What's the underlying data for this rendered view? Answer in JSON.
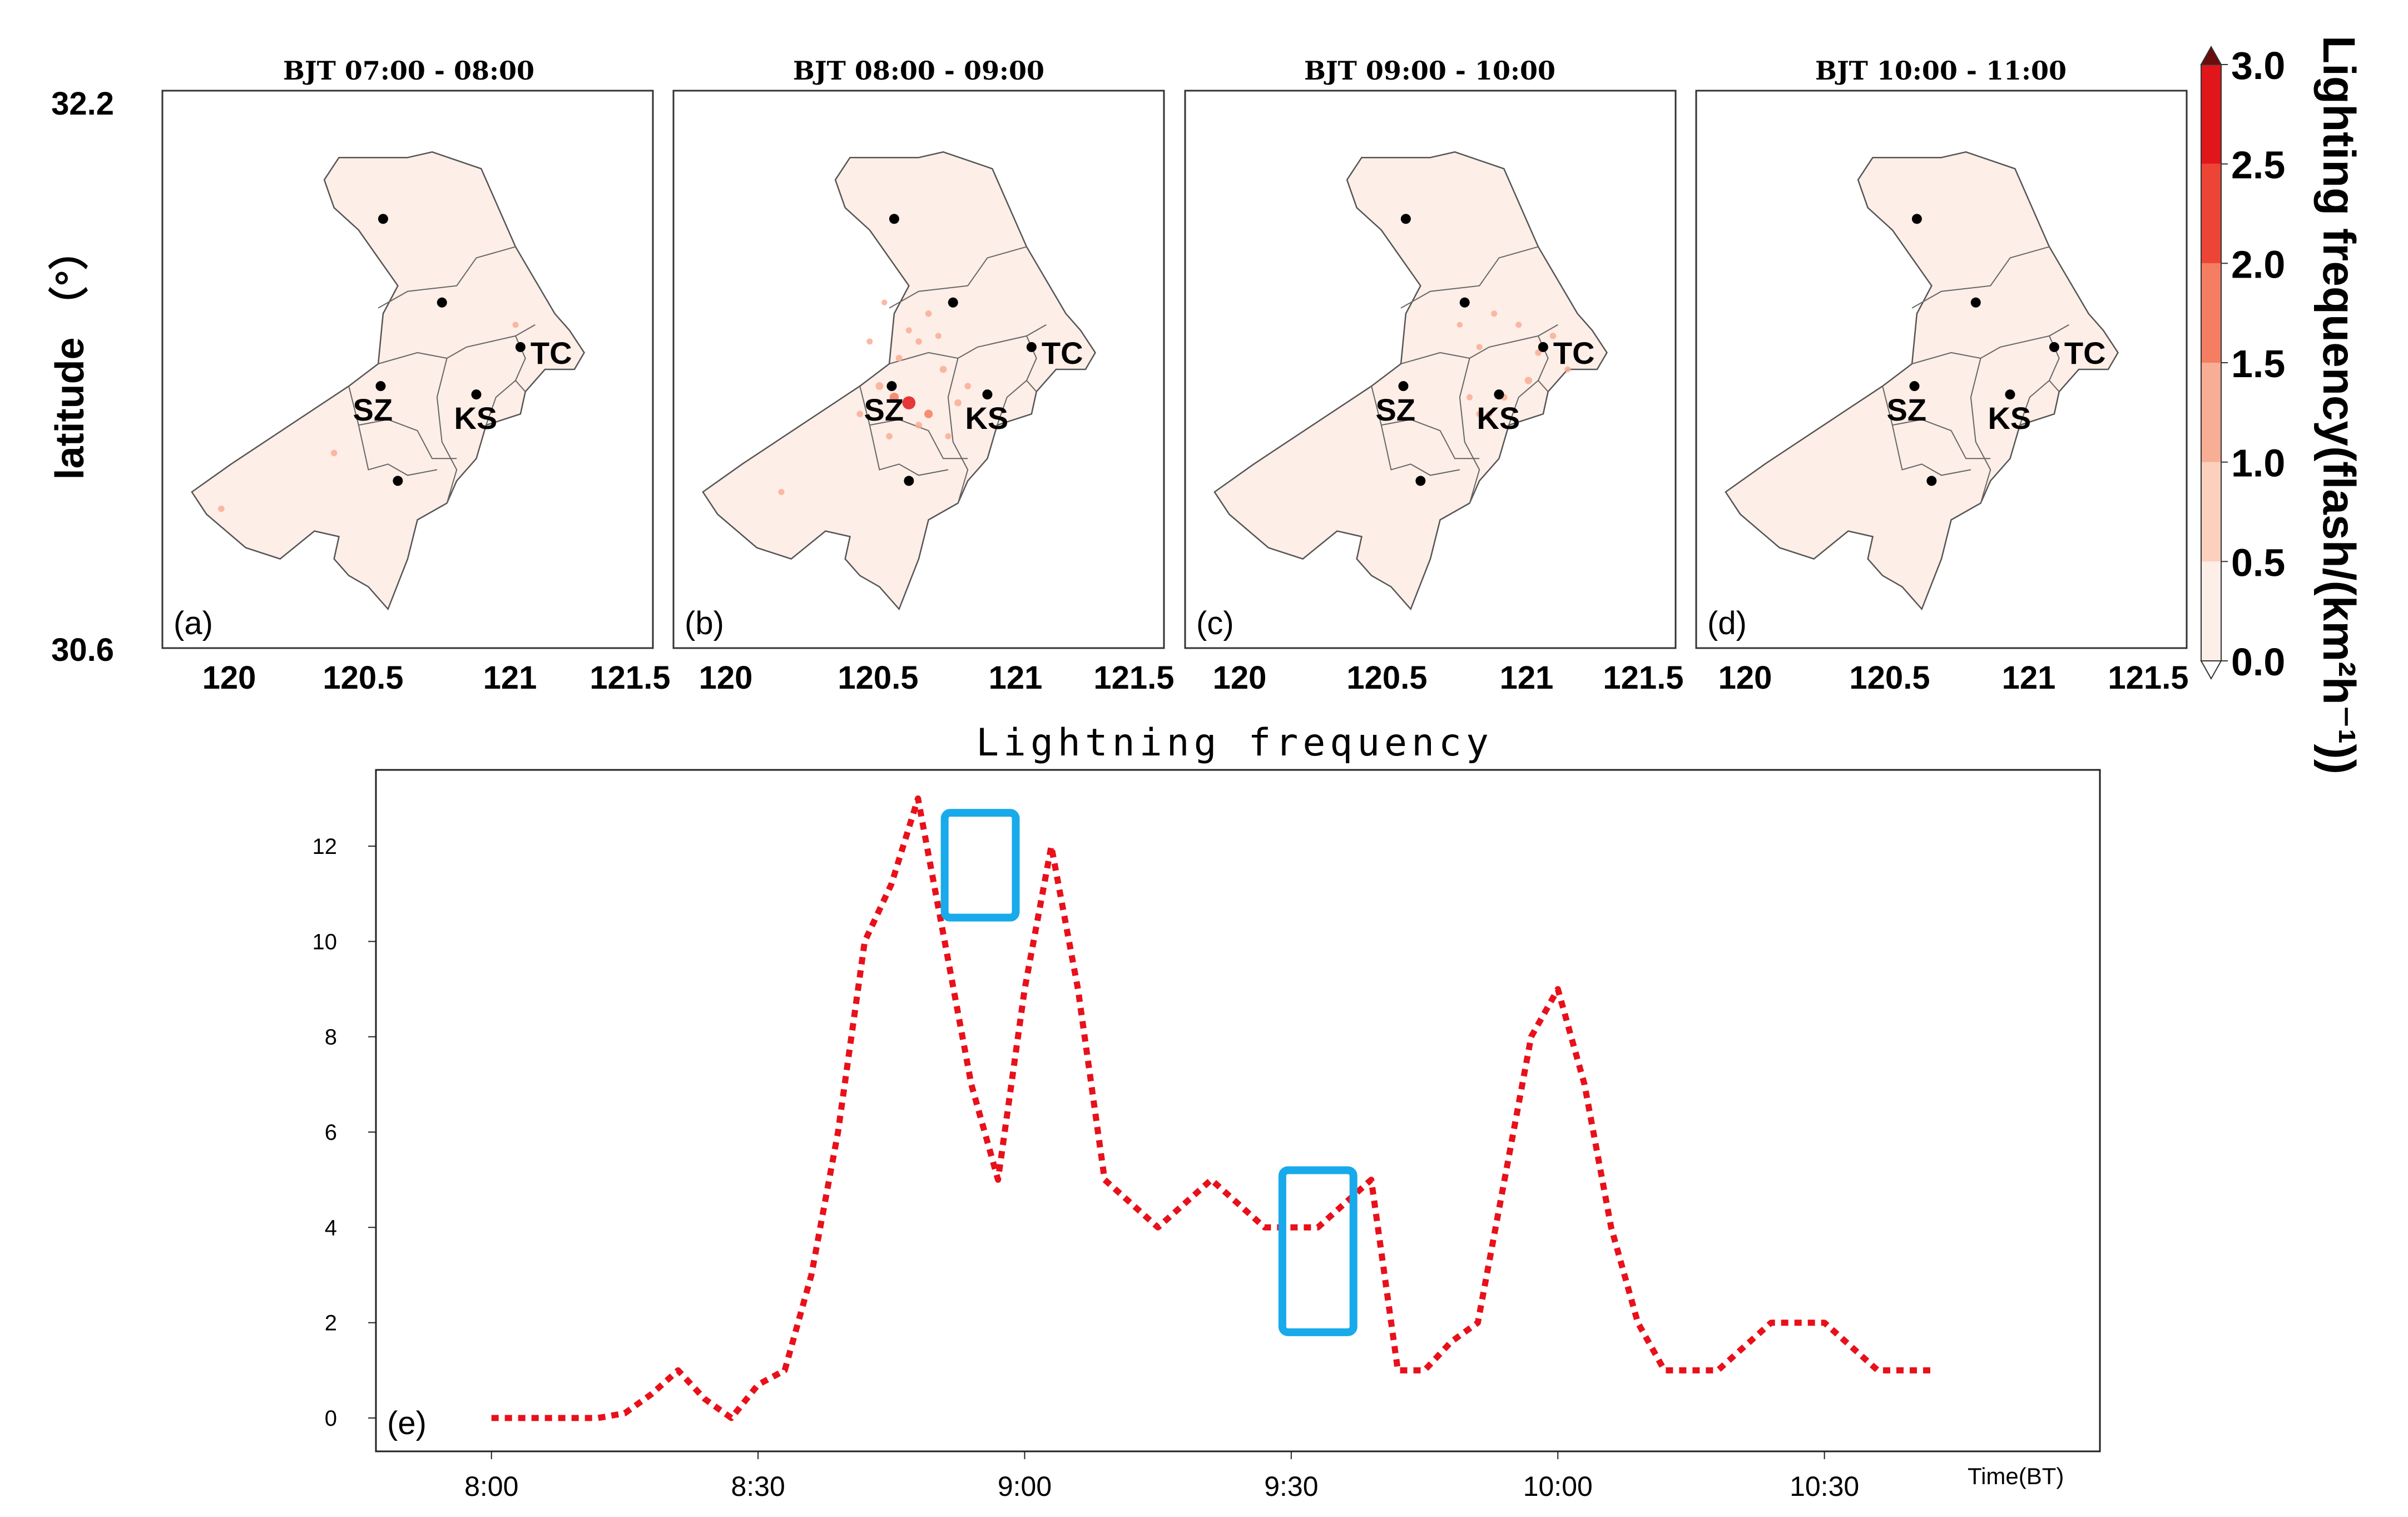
{
  "colorbar": {
    "label": "Lighting frequency(flash/(km²h⁻¹))",
    "ticks": [
      "0.0",
      "0.5",
      "1.0",
      "1.5",
      "2.0",
      "2.5",
      "3.0"
    ],
    "colors": [
      "#fdeee7",
      "#fbd0bc",
      "#f8ad95",
      "#f47d62",
      "#ec4535",
      "#e0161b",
      "#a30e14"
    ],
    "extend_color": "#6a0c0c"
  },
  "maps": {
    "ylabel": "latitude （°）",
    "lat_top": "32.2",
    "lat_bottom": "30.6",
    "lon_ticks": [
      "120",
      "120.5",
      "121",
      "121.5"
    ],
    "fill_color": "#fdeee7",
    "panels": [
      {
        "title": "BJT 07:00 - 08:00",
        "tag": "(a)",
        "strikes": [
          [
            0.35,
            0.65,
            0.6
          ],
          [
            0.12,
            0.75,
            0.6
          ],
          [
            0.72,
            0.42,
            0.5
          ]
        ]
      },
      {
        "title": "BJT 08:00 - 09:00",
        "tag": "(b)",
        "strikes": [
          [
            0.48,
            0.56,
            2.6
          ],
          [
            0.45,
            0.55,
            1.4
          ],
          [
            0.42,
            0.53,
            1.0
          ],
          [
            0.52,
            0.58,
            1.2
          ],
          [
            0.55,
            0.5,
            0.8
          ],
          [
            0.46,
            0.48,
            0.7
          ],
          [
            0.5,
            0.45,
            0.6
          ],
          [
            0.58,
            0.56,
            0.8
          ],
          [
            0.44,
            0.62,
            0.6
          ],
          [
            0.52,
            0.4,
            0.6
          ],
          [
            0.48,
            0.43,
            0.5
          ],
          [
            0.4,
            0.45,
            0.5
          ],
          [
            0.38,
            0.58,
            0.6
          ],
          [
            0.56,
            0.62,
            0.5
          ],
          [
            0.22,
            0.72,
            0.5
          ],
          [
            0.5,
            0.6,
            0.7
          ],
          [
            0.6,
            0.53,
            0.6
          ],
          [
            0.43,
            0.38,
            0.4
          ],
          [
            0.54,
            0.44,
            0.5
          ]
        ]
      },
      {
        "title": "BJT 09:00 - 10:00",
        "tag": "(c)",
        "strikes": [
          [
            0.7,
            0.52,
            0.9
          ],
          [
            0.65,
            0.55,
            0.7
          ],
          [
            0.62,
            0.58,
            0.6
          ],
          [
            0.58,
            0.55,
            0.5
          ],
          [
            0.72,
            0.47,
            0.6
          ],
          [
            0.68,
            0.42,
            0.5
          ],
          [
            0.63,
            0.4,
            0.5
          ],
          [
            0.6,
            0.46,
            0.5
          ],
          [
            0.75,
            0.44,
            0.6
          ],
          [
            0.78,
            0.5,
            0.5
          ],
          [
            0.56,
            0.42,
            0.4
          ],
          [
            0.6,
            0.58,
            0.6
          ]
        ]
      },
      {
        "title": "BJT 10:00 - 11:00",
        "tag": "(d)",
        "strikes": []
      }
    ],
    "cities": [
      {
        "name": "SZ",
        "lon": 0.445,
        "lat": 0.53,
        "label": true
      },
      {
        "name": "KS",
        "lon": 0.64,
        "lat": 0.545,
        "label": true
      },
      {
        "name": "TC",
        "lon": 0.73,
        "lat": 0.46,
        "label": true
      },
      {
        "name": "",
        "lon": 0.45,
        "lat": 0.23,
        "label": false
      },
      {
        "name": "",
        "lon": 0.57,
        "lat": 0.38,
        "label": false
      },
      {
        "name": "",
        "lon": 0.48,
        "lat": 0.7,
        "label": false
      }
    ]
  },
  "chart_data": {
    "type": "line",
    "title": "Lightning frequency",
    "tag": "(e)",
    "xlabel": "Time(BT)",
    "ylabel": "",
    "x_unit": "minutes after 8:00",
    "xlim": [
      -13,
      181
    ],
    "ylim": [
      -0.7,
      13.6
    ],
    "yticks": [
      0,
      2,
      4,
      6,
      8,
      10,
      12
    ],
    "xticks": [
      {
        "v": 0,
        "label": "8:00"
      },
      {
        "v": 30,
        "label": "8:30"
      },
      {
        "v": 60,
        "label": "9:00"
      },
      {
        "v": 90,
        "label": "9:30"
      },
      {
        "v": 120,
        "label": "10:00"
      },
      {
        "v": 150,
        "label": "10:30"
      }
    ],
    "line_color": "#e8101a",
    "box_color": "#18aaea",
    "series": [
      {
        "name": "Lightning frequency",
        "x": [
          0,
          3,
          6,
          9,
          12,
          15,
          18,
          21,
          24,
          27,
          30,
          33,
          36,
          39,
          42,
          45,
          48,
          51,
          54,
          57,
          60,
          63,
          66,
          69,
          72,
          75,
          78,
          81,
          84,
          87,
          90,
          93,
          96,
          99,
          102,
          105,
          108,
          111,
          114,
          117,
          120,
          123,
          126,
          129,
          132,
          135,
          138,
          141,
          144,
          147,
          150,
          153,
          156,
          159,
          162
        ],
        "y": [
          0,
          0,
          0,
          0,
          0,
          0.1,
          0.5,
          1,
          0.4,
          0,
          0.7,
          1,
          3,
          6,
          10,
          11.2,
          13,
          10,
          7,
          5,
          9,
          12,
          9,
          5,
          4.5,
          4,
          4.5,
          5,
          4.5,
          4,
          4,
          4,
          4.5,
          5,
          1,
          1,
          1.6,
          2,
          5,
          8,
          9,
          7,
          4,
          2,
          1,
          1,
          1,
          1.5,
          2,
          2,
          2,
          1.5,
          1,
          1,
          1
        ]
      }
    ],
    "highlight_boxes": [
      {
        "x0": 51,
        "x1": 59,
        "y0": 10.5,
        "y1": 12.7
      },
      {
        "x0": 89,
        "x1": 97,
        "y0": 1.8,
        "y1": 5.2
      }
    ]
  }
}
